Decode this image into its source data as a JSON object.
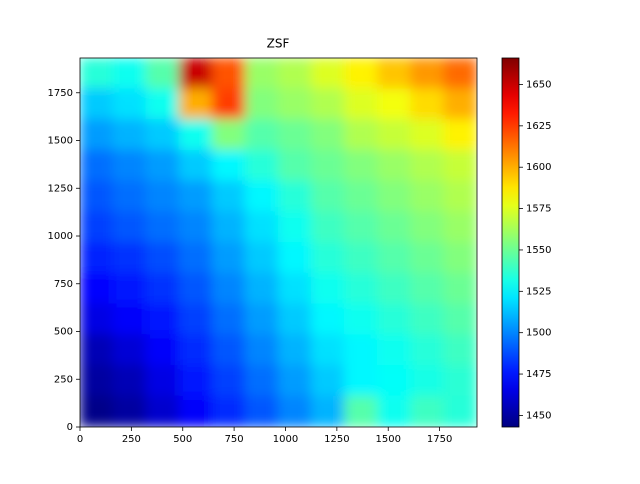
{
  "chart_data": {
    "type": "heatmap",
    "title": "ZSF",
    "colormap": "jet",
    "xlim": [
      0,
      1932
    ],
    "ylim": [
      0,
      1932
    ],
    "clim": [
      1443,
      1666
    ],
    "xticks": [
      0,
      250,
      500,
      750,
      1000,
      1250,
      1500,
      1750
    ],
    "yticks": [
      0,
      250,
      500,
      750,
      1000,
      1250,
      1500,
      1750
    ],
    "cticks": [
      1450,
      1475,
      1500,
      1525,
      1550,
      1575,
      1600,
      1625,
      1650
    ],
    "values": [
      [
        1535,
        1530,
        1545,
        1650,
        1620,
        1560,
        1565,
        1575,
        1585,
        1595,
        1605,
        1615
      ],
      [
        1515,
        1520,
        1530,
        1600,
        1625,
        1555,
        1560,
        1565,
        1575,
        1580,
        1590,
        1600
      ],
      [
        1505,
        1510,
        1515,
        1530,
        1555,
        1545,
        1550,
        1555,
        1565,
        1570,
        1575,
        1585
      ],
      [
        1495,
        1500,
        1505,
        1515,
        1525,
        1535,
        1545,
        1550,
        1555,
        1560,
        1565,
        1570
      ],
      [
        1490,
        1495,
        1500,
        1505,
        1515,
        1525,
        1535,
        1545,
        1550,
        1555,
        1560,
        1565
      ],
      [
        1485,
        1490,
        1495,
        1500,
        1510,
        1520,
        1530,
        1540,
        1545,
        1550,
        1555,
        1560
      ],
      [
        1478,
        1482,
        1488,
        1495,
        1505,
        1515,
        1525,
        1535,
        1540,
        1545,
        1550,
        1555
      ],
      [
        1472,
        1476,
        1482,
        1490,
        1500,
        1510,
        1520,
        1530,
        1535,
        1540,
        1545,
        1550
      ],
      [
        1465,
        1470,
        1476,
        1485,
        1495,
        1505,
        1515,
        1525,
        1530,
        1535,
        1540,
        1545
      ],
      [
        1455,
        1462,
        1470,
        1480,
        1490,
        1500,
        1510,
        1520,
        1525,
        1530,
        1535,
        1540
      ],
      [
        1450,
        1455,
        1465,
        1475,
        1485,
        1495,
        1505,
        1515,
        1525,
        1528,
        1532,
        1536
      ],
      [
        1445,
        1450,
        1460,
        1470,
        1480,
        1490,
        1500,
        1510,
        1545,
        1530,
        1540,
        1535
      ]
    ]
  }
}
